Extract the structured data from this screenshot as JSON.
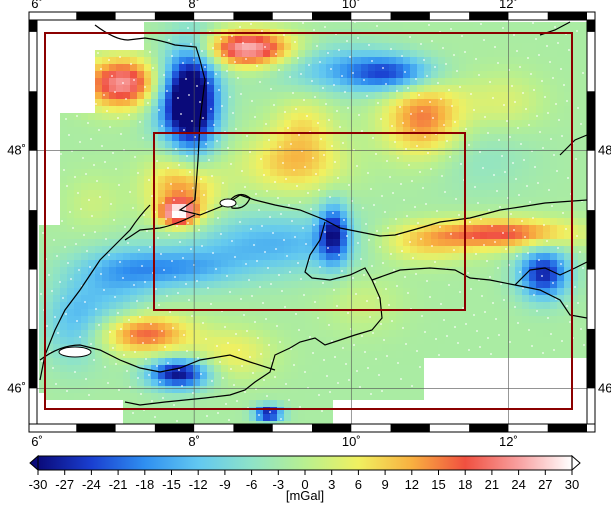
{
  "map": {
    "lon_ticks": [
      {
        "value": 6,
        "label": "6˚"
      },
      {
        "value": 8,
        "label": "8˚"
      },
      {
        "value": 10,
        "label": "10˚"
      },
      {
        "value": 12,
        "label": "12˚"
      }
    ],
    "lat_ticks": [
      {
        "value": 46,
        "label": "46˚"
      },
      {
        "value": 48,
        "label": "48˚"
      }
    ],
    "lon_range": [
      6,
      13
    ],
    "lat_range": [
      45.7,
      49.1
    ],
    "outer_box_color": "#8b0000",
    "inner_box_color": "#8b0000",
    "border_color": "#000000"
  },
  "colorbar": {
    "ticks": [
      "-30",
      "-27",
      "-24",
      "-21",
      "-18",
      "-15",
      "-12",
      "-9",
      "-6",
      "-3",
      "0",
      "3",
      "6",
      "9",
      "12",
      "15",
      "18",
      "21",
      "24",
      "27",
      "30"
    ],
    "unit_label": "[mGal]",
    "colors": [
      "#0a0a7a",
      "#1a3fd0",
      "#2f8ff0",
      "#62c8f0",
      "#8ee3c8",
      "#b8f090",
      "#f0f060",
      "#f8b040",
      "#f05040",
      "#f8a0a0",
      "#ffffff"
    ]
  }
}
